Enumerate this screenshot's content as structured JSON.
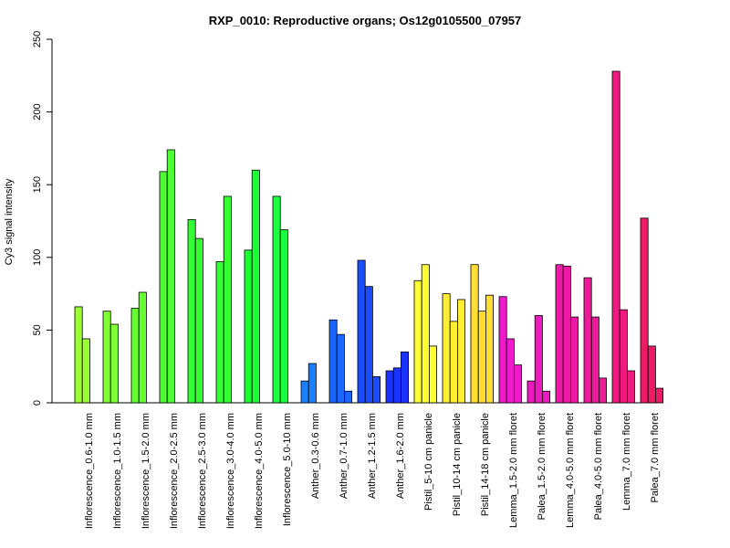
{
  "chart_data": {
    "type": "bar",
    "title": "RXP_0010: Reproductive organs; Os12g0105500_07957",
    "xlabel": "",
    "ylabel": "Cy3 signal intensity",
    "ylim": [
      0,
      250
    ],
    "yticks": [
      0,
      50,
      100,
      150,
      200,
      250
    ],
    "grid": false,
    "legend": "none",
    "groups": [
      {
        "label": "Inflorescence_0.6-1.0 mm",
        "color": "#99ff33",
        "values": [
          66,
          44
        ]
      },
      {
        "label": "Inflorescence_1.0-1.5 mm",
        "color": "#80ff33",
        "values": [
          63,
          54
        ]
      },
      {
        "label": "Inflorescence_1.5-2.0 mm",
        "color": "#66ff33",
        "values": [
          65,
          76
        ]
      },
      {
        "label": "Inflorescence_2.0-2.5 mm",
        "color": "#4dff33",
        "values": [
          159,
          174
        ]
      },
      {
        "label": "Inflorescence_2.5-3.0 mm",
        "color": "#33ff33",
        "values": [
          126,
          113
        ]
      },
      {
        "label": "Inflorescence_3.0-4.0 mm",
        "color": "#33ff33",
        "values": [
          97,
          142
        ]
      },
      {
        "label": "Inflorescence_4.0-5.0 mm",
        "color": "#1aff33",
        "values": [
          105,
          160
        ]
      },
      {
        "label": "Inflorescence_5.0-10 mm",
        "color": "#1aff40",
        "values": [
          142,
          119
        ]
      },
      {
        "label": "Anther_0.3-0.6 mm",
        "color": "#1a80ff",
        "values": [
          15,
          27
        ]
      },
      {
        "label": "Anther_0.7-1.0 mm",
        "color": "#1a66ff",
        "values": [
          57,
          47,
          8
        ]
      },
      {
        "label": "Anther_1.2-1.5 mm",
        "color": "#1a4dff",
        "values": [
          98,
          80,
          18
        ]
      },
      {
        "label": "Anther_1.6-2.0 mm",
        "color": "#1a33ff",
        "values": [
          22,
          24,
          35
        ]
      },
      {
        "label": "Pistil_5-10 cm panicle",
        "color": "#ffff33",
        "values": [
          84,
          95,
          39
        ]
      },
      {
        "label": "Pistil_10-14 cm panicle",
        "color": "#ffee33",
        "values": [
          75,
          56,
          71
        ]
      },
      {
        "label": "Pistil_14-18 cm panicle",
        "color": "#ffdd33",
        "values": [
          95,
          63,
          74
        ]
      },
      {
        "label": "Lemma_1.5-2.0 mm floret",
        "color": "#ee1acc",
        "values": [
          73,
          44,
          26
        ]
      },
      {
        "label": "Palea_1.5-2.0 mm floret",
        "color": "#ee1ac0",
        "values": [
          15,
          60,
          8
        ]
      },
      {
        "label": "Lemma_4.0-5.0 mm floret",
        "color": "#ee1aa6",
        "values": [
          95,
          94,
          59
        ]
      },
      {
        "label": "Palea_4.0-5.0 mm floret",
        "color": "#ee1a99",
        "values": [
          86,
          59,
          17
        ]
      },
      {
        "label": "Lemma_7.0 mm floret",
        "color": "#ee1a80",
        "values": [
          228,
          64,
          22
        ]
      },
      {
        "label": "Palea_7.0 mm floret",
        "color": "#ee1a66",
        "values": [
          127,
          39,
          10
        ]
      }
    ]
  }
}
